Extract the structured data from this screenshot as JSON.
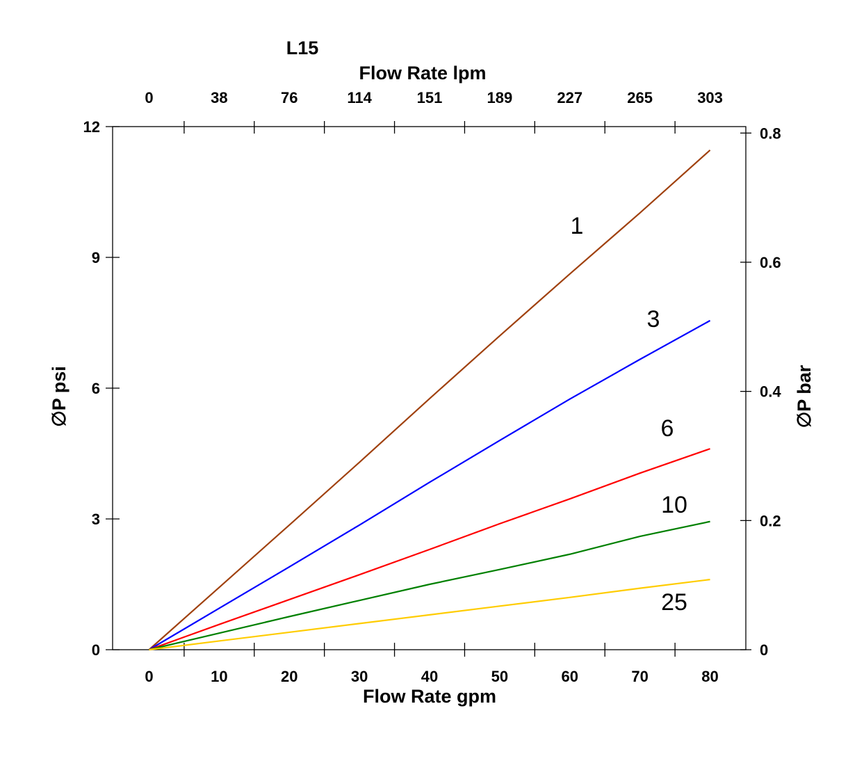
{
  "chart_data": {
    "type": "line",
    "title": "L15",
    "xlabel": "Flow Rate gpm",
    "x2label": "Flow Rate lpm",
    "ylabel": "∅P psi",
    "y2label": "∅P bar",
    "xlim": [
      -5.2,
      85.1
    ],
    "ylim": [
      0,
      12
    ],
    "y2lim": [
      0,
      0.81
    ],
    "grid": false,
    "x_ticks": [
      0,
      10,
      20,
      30,
      40,
      50,
      60,
      70,
      80
    ],
    "x2_tick_labels": [
      "0",
      "38",
      "76",
      "114",
      "151",
      "189",
      "227",
      "265",
      "303"
    ],
    "y_ticks": [
      0,
      3,
      6,
      9,
      12
    ],
    "y2_ticks": [
      0,
      0.2,
      0.4,
      0.6,
      0.8
    ],
    "series": [
      {
        "name": "1",
        "color": "#a0410d",
        "x": [
          0,
          10,
          20,
          30,
          40,
          50,
          60,
          70,
          80
        ],
        "y": [
          0,
          1.43,
          2.86,
          4.3,
          5.76,
          7.2,
          8.62,
          10.02,
          11.46
        ]
      },
      {
        "name": "3",
        "color": "#0000ff",
        "x": [
          0,
          10,
          20,
          30,
          40,
          50,
          60,
          70,
          80
        ],
        "y": [
          0,
          0.95,
          1.9,
          2.86,
          3.84,
          4.8,
          5.75,
          6.66,
          7.55
        ]
      },
      {
        "name": "6",
        "color": "#ff0000",
        "x": [
          0,
          10,
          20,
          30,
          40,
          50,
          60,
          70,
          80
        ],
        "y": [
          0,
          0.58,
          1.15,
          1.72,
          2.3,
          2.89,
          3.46,
          4.05,
          4.61
        ]
      },
      {
        "name": "10",
        "color": "#008000",
        "x": [
          0,
          10,
          20,
          30,
          40,
          50,
          60,
          70,
          80
        ],
        "y": [
          0,
          0.38,
          0.76,
          1.13,
          1.5,
          1.84,
          2.19,
          2.6,
          2.94
        ]
      },
      {
        "name": "25",
        "color": "#ffcc00",
        "x": [
          0,
          10,
          20,
          30,
          40,
          50,
          60,
          70,
          80
        ],
        "y": [
          0,
          0.2,
          0.4,
          0.6,
          0.8,
          1.0,
          1.2,
          1.41,
          1.61
        ]
      }
    ]
  }
}
